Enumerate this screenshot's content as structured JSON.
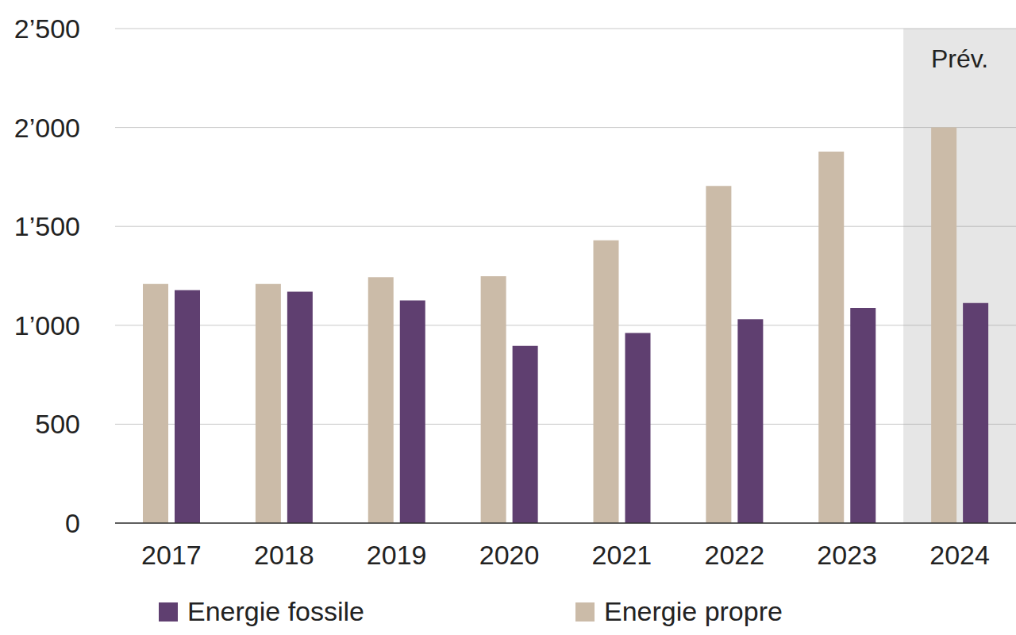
{
  "chart_data": {
    "type": "bar",
    "categories": [
      "2017",
      "2018",
      "2019",
      "2020",
      "2021",
      "2022",
      "2023",
      "2024"
    ],
    "series": [
      {
        "name": "Energie propre",
        "color": "#cbbba8",
        "values": [
          1209,
          1209,
          1243,
          1248,
          1430,
          1704,
          1878,
          2000
        ]
      },
      {
        "name": "Energie fossile",
        "color": "#5f3f70",
        "values": [
          1178,
          1170,
          1126,
          896,
          961,
          1030,
          1087,
          1113
        ]
      }
    ],
    "ylim": [
      0,
      2500
    ],
    "yticks": [
      0,
      500,
      {
        "value": 1000,
        "label": "1’000"
      },
      {
        "value": 1500,
        "label": "1’500"
      },
      {
        "value": 2000,
        "label": "2’000"
      },
      {
        "value": 2500,
        "label": "2’500"
      }
    ],
    "grid": true,
    "legend": "bottom",
    "annotations": [
      {
        "text": "Prév.",
        "x": "2024"
      }
    ]
  }
}
